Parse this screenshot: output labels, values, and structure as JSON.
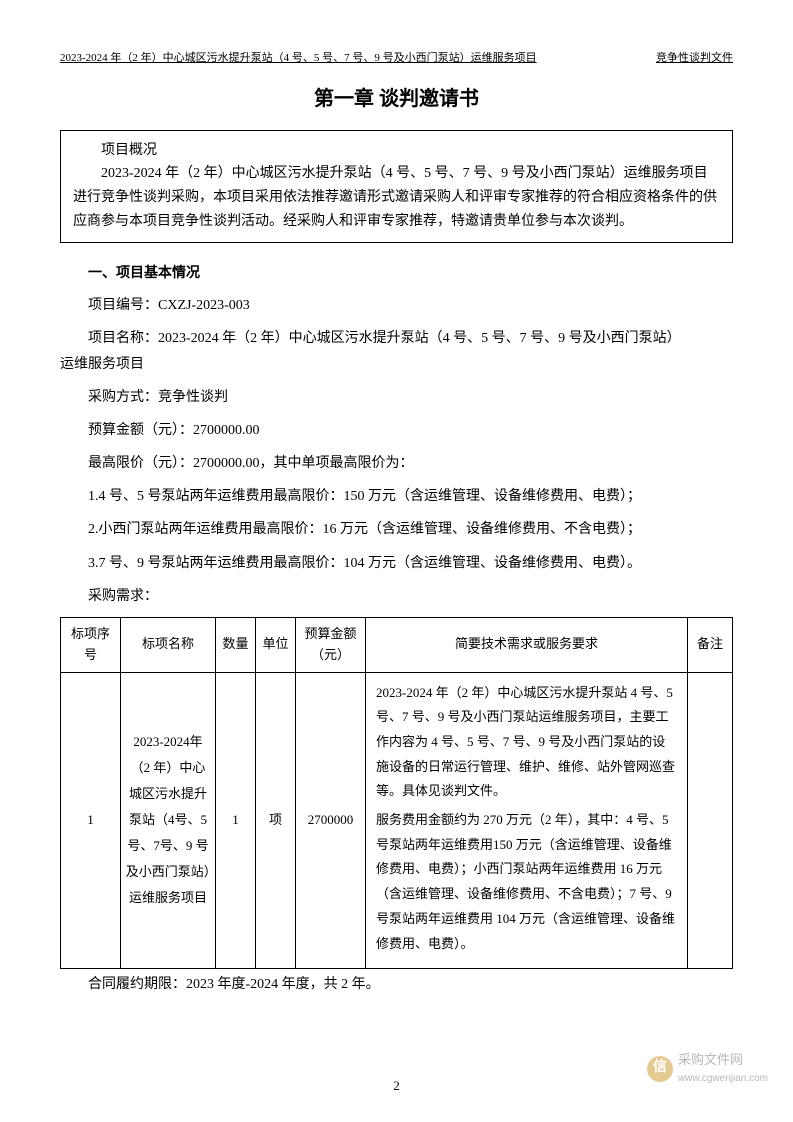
{
  "header": {
    "left": "2023-2024 年（2 年）中心城区污水提升泵站（4 号、5 号、7 号、9 号及小西门泵站）运维服务项目",
    "right": "竞争性谈判文件"
  },
  "chapter_title": "第一章 谈判邀请书",
  "overview": {
    "title": "项目概况",
    "content": "2023-2024 年（2 年）中心城区污水提升泵站（4 号、5 号、7 号、9 号及小西门泵站）运维服务项目进行竞争性谈判采购，本项目采用依法推荐邀请形式邀请采购人和评审专家推荐的符合相应资格条件的供应商参与本项目竞争性谈判活动。经采购人和评审专家推荐，特邀请贵单位参与本次谈判。"
  },
  "section_title": "一、项目基本情况",
  "lines": {
    "project_no": "项目编号：CXZJ-2023-003",
    "project_name_p1": "项目名称：2023-2024 年（2 年）中心城区污水提升泵站（4 号、5 号、7 号、9 号及小西门泵站）",
    "project_name_p2": "运维服务项目",
    "method": "采购方式：竞争性谈判",
    "budget": "预算金额（元）：2700000.00",
    "max_price": "最高限价（元）：2700000.00，其中单项最高限价为：",
    "item1": "1.4 号、5 号泵站两年运维费用最高限价：150 万元（含运维管理、设备维修费用、电费）；",
    "item2": "2.小西门泵站两年运维费用最高限价：16 万元（含运维管理、设备维修费用、不含电费）；",
    "item3": "3.7 号、9 号泵站两年运维费用最高限价：104 万元（含运维管理、设备维修费用、电费）。",
    "demand": "采购需求："
  },
  "table": {
    "headers": {
      "seq": "标项序号",
      "name": "标项名称",
      "qty": "数量",
      "unit": "单位",
      "budget": "预算金额（元）",
      "req": "简要技术需求或服务要求",
      "note": "备注"
    },
    "row": {
      "seq": "1",
      "name": "2023-2024年（2 年）中心城区污水提升泵站（4号、5 号、7号、9 号及小西门泵站）运维服务项目",
      "qty": "1",
      "unit": "项",
      "budget": "2700000",
      "req": "2023-2024 年（2 年）中心城区污水提升泵站 4 号、5 号、7 号、9 号及小西门泵站运维服务项目，主要工作内容为 4 号、5 号、7 号、9 号及小西门泵站的设施设备的日常运行管理、维护、维修、站外管网巡查等。具体见谈判文件。\n服务费用金额约为 270 万元（2 年），其中：4 号、5 号泵站两年运维费用150 万元（含运维管理、设备维修费用、电费）；小西门泵站两年运维费用 16 万元（含运维管理、设备维修费用、不含电费）；7 号、9 号泵站两年运维费用 104 万元（含运维管理、设备维修费用、电费）。",
      "note": ""
    }
  },
  "contract_period": "合同履约期限：2023 年度-2024 年度，共 2 年。",
  "page_number": "2",
  "watermark": {
    "icon": "信",
    "text": "采购文件网",
    "url": "www.cgwenjian.com"
  },
  "styles": {
    "page_bg": "#ffffff",
    "text_color": "#000000",
    "border_color": "#000000",
    "watermark_icon_bg": "#d4a84b",
    "watermark_text_color": "#888888",
    "body_fontsize": 14,
    "title_fontsize": 20,
    "header_fontsize": 11,
    "table_fontsize": 13
  }
}
